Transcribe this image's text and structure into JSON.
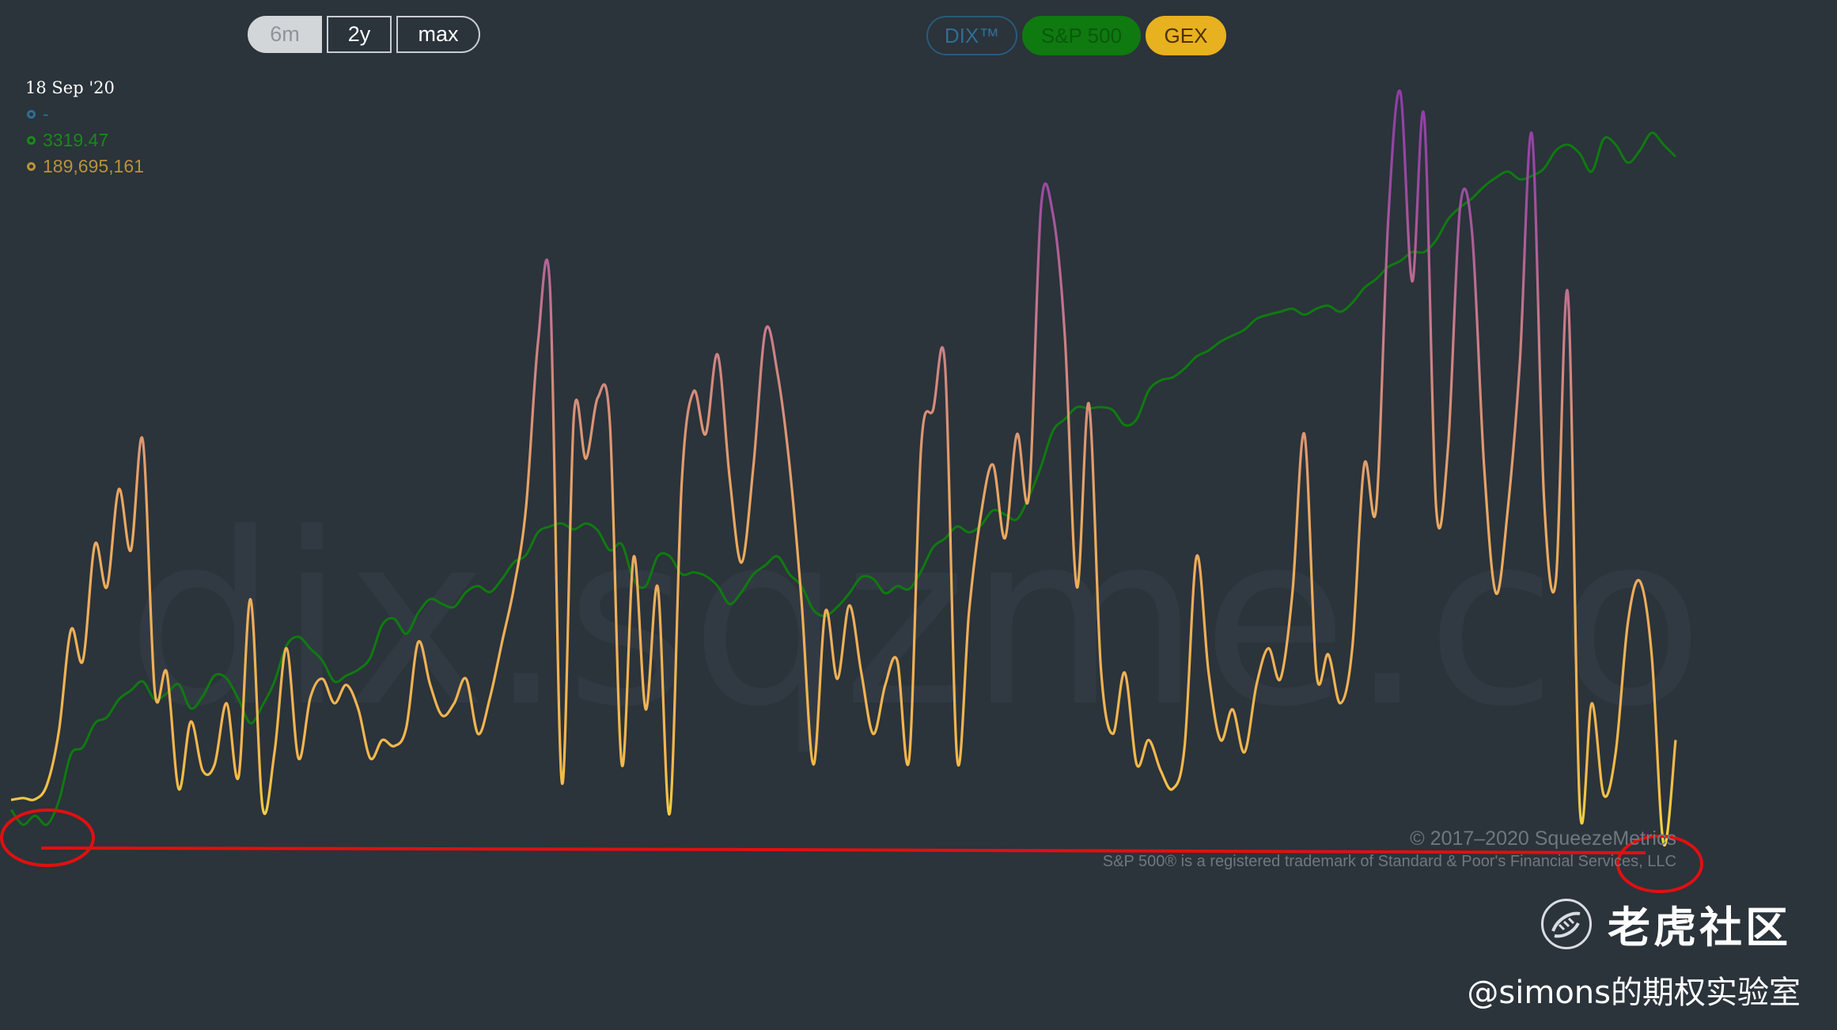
{
  "range_buttons": [
    {
      "label": "6m",
      "active": true
    },
    {
      "label": "2y",
      "active": false
    },
    {
      "label": "max",
      "active": false
    }
  ],
  "series_toggles": [
    {
      "label": "DIX™",
      "color": "#2f6e94",
      "on": false
    },
    {
      "label": "S&P 500",
      "color": "#0f7a10",
      "on": true
    },
    {
      "label": "GEX",
      "color": "#e8b11f",
      "on": true
    }
  ],
  "tooltip": {
    "date": "18 Sep '20",
    "dix": "-",
    "spx": "3319.47",
    "gex": "189,695,161",
    "colors": {
      "dix": "#2d6f95",
      "spx": "#188a18",
      "gex": "#b7933b"
    }
  },
  "watermark": "dix.sqzme.co",
  "copyright": {
    "line1": "© 2017–2020 SqueezeMetrics",
    "line2": "S&P 500® is a registered trademark of Standard & Poor's Financial Services, LLC"
  },
  "overlay": {
    "community_name": "老虎社区",
    "handle": "@simons的期权实验室",
    "annotation_color": "#e01010"
  },
  "chart_data": {
    "type": "line",
    "title": "",
    "xlabel": "",
    "ylabel": "",
    "grid": false,
    "series": [
      {
        "name": "S&P 500",
        "color": "#0f7a10",
        "values": [
          2905,
          2880,
          2895,
          2880,
          2920,
          2998,
          3010,
          3050,
          3060,
          3090,
          3105,
          3120,
          3090,
          3100,
          3115,
          3075,
          3095,
          3130,
          3125,
          3090,
          3050,
          3080,
          3120,
          3180,
          3195,
          3175,
          3155,
          3120,
          3130,
          3140,
          3160,
          3215,
          3225,
          3200,
          3235,
          3258,
          3250,
          3245,
          3270,
          3280,
          3270,
          3292,
          3320,
          3332,
          3370,
          3380,
          3385,
          3375,
          3385,
          3373,
          3340,
          3350,
          3290,
          3280,
          3330,
          3330,
          3300,
          3303,
          3297,
          3280,
          3250,
          3270,
          3300,
          3315,
          3330,
          3300,
          3280,
          3240,
          3230,
          3245,
          3268,
          3295,
          3292,
          3268,
          3280,
          3275,
          3305,
          3345,
          3360,
          3380,
          3370,
          3382,
          3407,
          3400,
          3392,
          3430,
          3480,
          3540,
          3560,
          3580,
          3578,
          3580,
          3575,
          3550,
          3560,
          3608,
          3625,
          3630,
          3645,
          3665,
          3675,
          3690,
          3700,
          3710,
          3728,
          3735,
          3740,
          3745,
          3735,
          3745,
          3750,
          3740,
          3755,
          3780,
          3795,
          3815,
          3825,
          3840,
          3840,
          3860,
          3895,
          3915,
          3930,
          3950,
          3965,
          3975,
          3962,
          3968,
          3980,
          4010,
          4020,
          4005,
          3975,
          4030,
          4020,
          3990,
          4010,
          4040,
          4020,
          4000
        ]
      },
      {
        "name": "GEX",
        "color": "#e8b11f",
        "values": [
          0.02,
          0.05,
          0.03,
          0.27,
          1.15,
          2.8,
          2.3,
          4.2,
          3.5,
          5.1,
          4.1,
          5.9,
          1.8,
          2.1,
          0.2,
          1.3,
          0.5,
          0.6,
          1.6,
          0.4,
          3.3,
          -0.1,
          0.8,
          2.5,
          0.7,
          1.7,
          2.0,
          1.6,
          1.9,
          1.5,
          0.7,
          1.0,
          0.9,
          1.2,
          2.6,
          1.9,
          1.4,
          1.6,
          2.0,
          1.1,
          1.7,
          2.6,
          3.5,
          4.8,
          7.5,
          8.4,
          0.3,
          6.3,
          5.6,
          6.6,
          6.2,
          0.6,
          4.0,
          1.5,
          3.5,
          -0.2,
          5.2,
          6.7,
          6.0,
          7.3,
          5.3,
          3.9,
          5.5,
          7.7,
          7.0,
          5.5,
          3.3,
          0.6,
          3.1,
          2.0,
          3.2,
          2.1,
          1.1,
          1.9,
          2.3,
          0.7,
          5.8,
          6.4,
          7.1,
          0.7,
          3.1,
          4.7,
          5.5,
          4.3,
          6.0,
          5.0,
          9.7,
          9.6,
          7.6,
          3.5,
          6.5,
          2.2,
          1.1,
          2.1,
          0.6,
          1.0,
          0.5,
          0.2,
          0.9,
          4.0,
          2.1,
          1.0,
          1.5,
          0.8,
          1.9,
          2.5,
          2.0,
          3.4,
          6.0,
          2.1,
          2.4,
          1.6,
          2.5,
          5.5,
          4.8,
          9.5,
          11.6,
          8.5,
          11.2,
          4.8,
          5.8,
          9.7,
          9.3,
          5.5,
          3.4,
          4.8,
          7.2,
          10.9,
          5.0,
          3.6,
          8.3,
          -0.1,
          1.6,
          0.1,
          0.8,
          2.9,
          3.6,
          2.4,
          -0.7,
          1.0
        ]
      }
    ],
    "dates_shown": [
      "18 Sep '20"
    ],
    "legend": "top-left"
  }
}
